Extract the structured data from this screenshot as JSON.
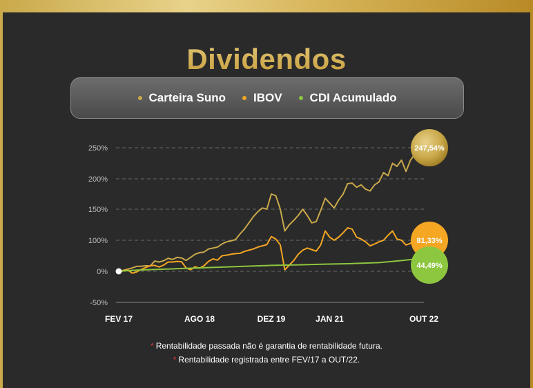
{
  "title": "Dividendos",
  "legend": [
    {
      "label": "Carteira Suno",
      "color": "#c9a94a"
    },
    {
      "label": "IBOV",
      "color": "#f5a623"
    },
    {
      "label": "CDI Acumulado",
      "color": "#8dc63f"
    }
  ],
  "footnotes": [
    "Rentabilidade passada não é garantia de rentabilidade futura.",
    "Rentabilidade registrada entre FEV/17 a OUT/22."
  ],
  "end_labels": {
    "carteira": "247,54%",
    "ibov": "81,33%",
    "cdi": "44,49%"
  },
  "chart_data": {
    "type": "line",
    "x_range": [
      "2017-02",
      "2022-10"
    ],
    "xtick_labels": [
      "FEV 17",
      "AGO 18",
      "DEZ 19",
      "JAN 21",
      "OUT 22"
    ],
    "xtick_dates": [
      "2017-02",
      "2018-08",
      "2019-12",
      "2021-01",
      "2022-10"
    ],
    "ytick_labels": [
      "250%",
      "200%",
      "150%",
      "100%",
      "0%",
      "-50%"
    ],
    "ytick_values": [
      250,
      200,
      150,
      100,
      0,
      -50
    ],
    "ylim": [
      -50,
      250
    ],
    "grid": true,
    "series": [
      {
        "name": "Carteira Suno",
        "color": "#c9a94a",
        "points": [
          [
            "2017-02",
            0
          ],
          [
            "2017-03",
            3
          ],
          [
            "2017-04",
            7
          ],
          [
            "2017-05",
            11
          ],
          [
            "2017-06",
            16
          ],
          [
            "2017-07",
            16
          ],
          [
            "2017-08",
            18
          ],
          [
            "2017-09",
            17
          ],
          [
            "2017-10",
            33
          ],
          [
            "2017-11",
            30
          ],
          [
            "2017-12",
            34
          ],
          [
            "2018-01",
            42
          ],
          [
            "2018-02",
            38
          ],
          [
            "2018-03",
            45
          ],
          [
            "2018-04",
            43
          ],
          [
            "2018-05",
            35
          ],
          [
            "2018-06",
            45
          ],
          [
            "2018-07",
            55
          ],
          [
            "2018-08",
            60
          ],
          [
            "2018-09",
            62
          ],
          [
            "2018-10",
            72
          ],
          [
            "2018-11",
            75
          ],
          [
            "2018-12",
            78
          ],
          [
            "2019-01",
            88
          ],
          [
            "2019-02",
            95
          ],
          [
            "2019-03",
            98
          ],
          [
            "2019-04",
            101
          ],
          [
            "2019-05",
            110
          ],
          [
            "2019-06",
            118
          ],
          [
            "2019-07",
            128
          ],
          [
            "2019-08",
            138
          ],
          [
            "2019-09",
            146
          ],
          [
            "2019-10",
            152
          ],
          [
            "2019-11",
            150
          ],
          [
            "2019-12",
            175
          ],
          [
            "2020-01",
            172
          ],
          [
            "2020-02",
            150
          ],
          [
            "2020-03",
            115
          ],
          [
            "2020-04",
            125
          ],
          [
            "2020-05",
            132
          ],
          [
            "2020-06",
            140
          ],
          [
            "2020-07",
            150
          ],
          [
            "2020-08",
            140
          ],
          [
            "2020-09",
            128
          ],
          [
            "2020-10",
            130
          ],
          [
            "2020-11",
            148
          ],
          [
            "2020-12",
            168
          ],
          [
            "2021-01",
            160
          ],
          [
            "2021-02",
            152
          ],
          [
            "2021-03",
            165
          ],
          [
            "2021-04",
            175
          ],
          [
            "2021-05",
            192
          ],
          [
            "2021-06",
            193
          ],
          [
            "2021-07",
            186
          ],
          [
            "2021-08",
            190
          ],
          [
            "2021-09",
            183
          ],
          [
            "2021-10",
            180
          ],
          [
            "2021-11",
            190
          ],
          [
            "2021-12",
            195
          ],
          [
            "2022-01",
            210
          ],
          [
            "2022-02",
            205
          ],
          [
            "2022-03",
            225
          ],
          [
            "2022-04",
            220
          ],
          [
            "2022-05",
            230
          ],
          [
            "2022-06",
            212
          ],
          [
            "2022-07",
            230
          ],
          [
            "2022-08",
            240
          ],
          [
            "2022-09",
            235
          ],
          [
            "2022-10",
            247.54
          ]
        ]
      },
      {
        "name": "IBOV",
        "color": "#f5a623",
        "points": [
          [
            "2017-02",
            0
          ],
          [
            "2017-03",
            2
          ],
          [
            "2017-04",
            4
          ],
          [
            "2017-05",
            -3
          ],
          [
            "2017-06",
            -1
          ],
          [
            "2017-07",
            6
          ],
          [
            "2017-08",
            12
          ],
          [
            "2017-09",
            18
          ],
          [
            "2017-10",
            19
          ],
          [
            "2017-11",
            14
          ],
          [
            "2017-12",
            20
          ],
          [
            "2018-01",
            30
          ],
          [
            "2018-02",
            30
          ],
          [
            "2018-03",
            32
          ],
          [
            "2018-04",
            31
          ],
          [
            "2018-05",
            11
          ],
          [
            "2018-06",
            5
          ],
          [
            "2018-07",
            15
          ],
          [
            "2018-08",
            10
          ],
          [
            "2018-09",
            18
          ],
          [
            "2018-10",
            32
          ],
          [
            "2018-11",
            40
          ],
          [
            "2018-12",
            36
          ],
          [
            "2019-01",
            50
          ],
          [
            "2019-02",
            52
          ],
          [
            "2019-03",
            55
          ],
          [
            "2019-04",
            57
          ],
          [
            "2019-05",
            58
          ],
          [
            "2019-06",
            64
          ],
          [
            "2019-07",
            68
          ],
          [
            "2019-08",
            72
          ],
          [
            "2019-09",
            78
          ],
          [
            "2019-10",
            82
          ],
          [
            "2019-11",
            86
          ],
          [
            "2019-12",
            106
          ],
          [
            "2020-01",
            102
          ],
          [
            "2020-02",
            85
          ],
          [
            "2020-03",
            5
          ],
          [
            "2020-04",
            20
          ],
          [
            "2020-05",
            35
          ],
          [
            "2020-06",
            55
          ],
          [
            "2020-07",
            68
          ],
          [
            "2020-08",
            75
          ],
          [
            "2020-09",
            70
          ],
          [
            "2020-10",
            65
          ],
          [
            "2020-11",
            85
          ],
          [
            "2020-12",
            115
          ],
          [
            "2021-01",
            105
          ],
          [
            "2021-02",
            100
          ],
          [
            "2021-03",
            105
          ],
          [
            "2021-04",
            112
          ],
          [
            "2021-05",
            120
          ],
          [
            "2021-06",
            118
          ],
          [
            "2021-07",
            105
          ],
          [
            "2021-08",
            102
          ],
          [
            "2021-09",
            95
          ],
          [
            "2021-10",
            82
          ],
          [
            "2021-11",
            88
          ],
          [
            "2021-12",
            95
          ],
          [
            "2022-01",
            100
          ],
          [
            "2022-02",
            108
          ],
          [
            "2022-03",
            115
          ],
          [
            "2022-04",
            102
          ],
          [
            "2022-05",
            100
          ],
          [
            "2022-06",
            85
          ],
          [
            "2022-07",
            90
          ],
          [
            "2022-08",
            102
          ],
          [
            "2022-09",
            98
          ],
          [
            "2022-10",
            81.33
          ]
        ]
      },
      {
        "name": "CDI Acumulado",
        "color": "#8dc63f",
        "points": [
          [
            "2017-02",
            0
          ],
          [
            "2017-06",
            4
          ],
          [
            "2017-12",
            7
          ],
          [
            "2018-06",
            10
          ],
          [
            "2018-12",
            13
          ],
          [
            "2019-06",
            16
          ],
          [
            "2019-12",
            19
          ],
          [
            "2020-06",
            21
          ],
          [
            "2020-12",
            23
          ],
          [
            "2021-06",
            25
          ],
          [
            "2021-12",
            28
          ],
          [
            "2022-03",
            32
          ],
          [
            "2022-06",
            36
          ],
          [
            "2022-09",
            41
          ],
          [
            "2022-10",
            44.49
          ]
        ]
      }
    ]
  }
}
